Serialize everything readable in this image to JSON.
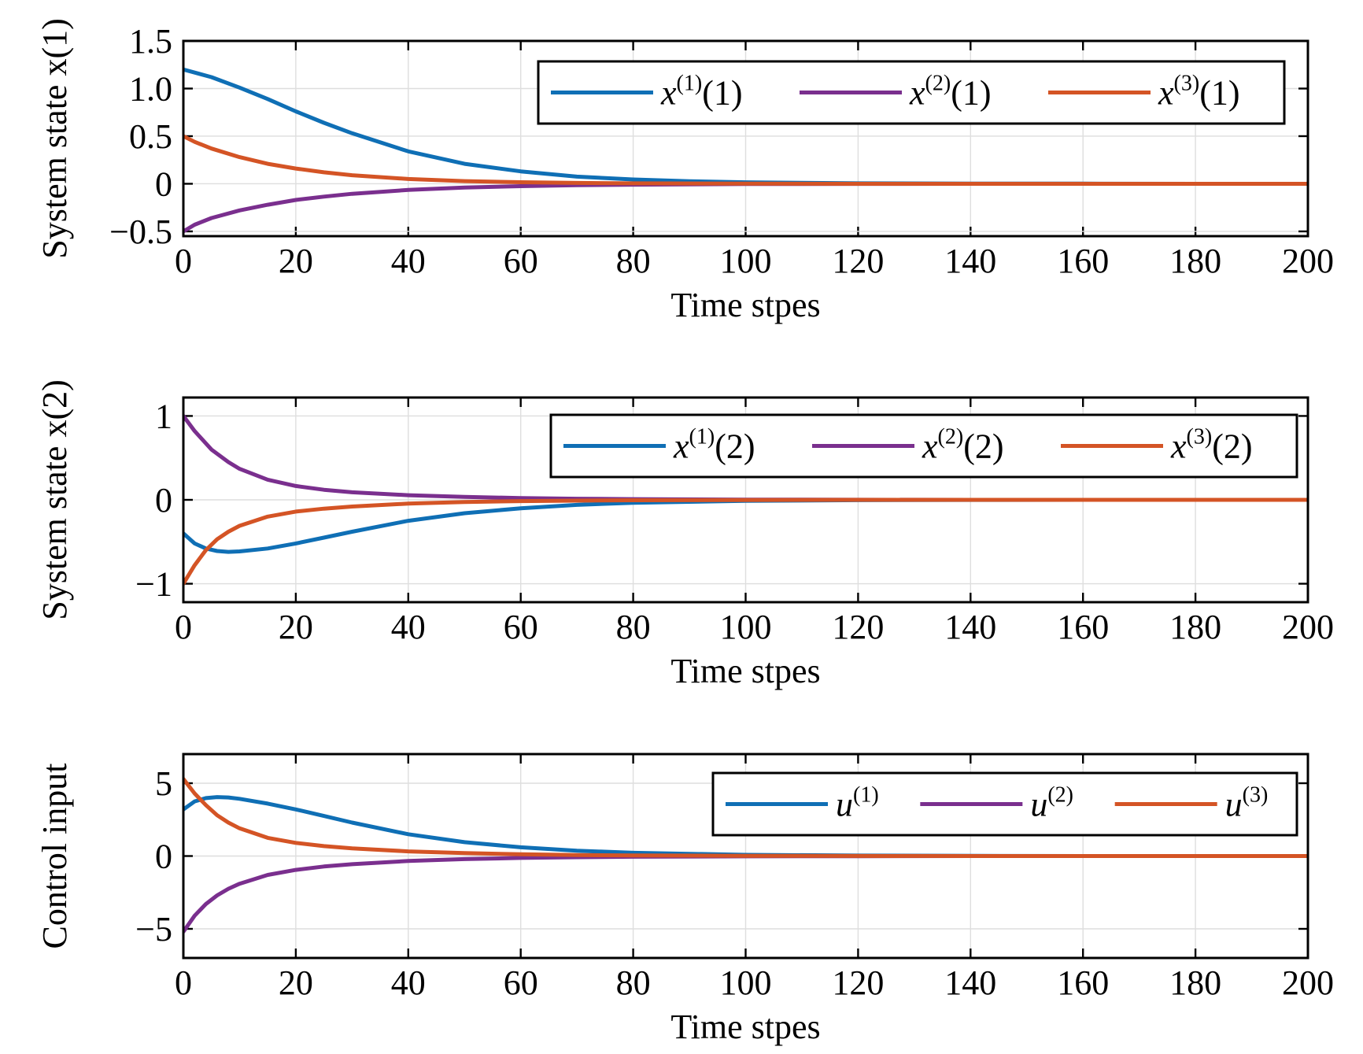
{
  "colors": {
    "blue": "#0f6fb5",
    "purple": "#7a2f8e",
    "orange": "#d45425"
  },
  "chart_data": [
    {
      "type": "line",
      "xlabel": "Time stpes",
      "ylabel": "System state x(1)",
      "xlim": [
        0,
        200
      ],
      "ylim": [
        -0.55,
        1.5
      ],
      "xticks": [
        "0",
        "20",
        "40",
        "60",
        "80",
        "100",
        "120",
        "140",
        "160",
        "180",
        "200"
      ],
      "yticks": [
        "1.5",
        "1.0",
        "0.5",
        "0",
        "−0.5"
      ],
      "yticks_values": [
        1.5,
        1.0,
        0.5,
        0,
        -0.5
      ],
      "grid": true,
      "legend_position": "top-right",
      "series": [
        {
          "name": "x(1)(1)",
          "label_main": "x",
          "label_sup": "(1)",
          "label_tail": "(1)",
          "color": "#0f6fb5",
          "x": [
            0,
            5,
            10,
            15,
            20,
            25,
            30,
            40,
            50,
            60,
            70,
            80,
            90,
            100,
            120,
            140,
            160,
            180,
            200
          ],
          "y": [
            1.2,
            1.12,
            1.01,
            0.89,
            0.76,
            0.64,
            0.53,
            0.34,
            0.21,
            0.13,
            0.075,
            0.045,
            0.026,
            0.015,
            0.005,
            0.002,
            0.001,
            0.0,
            0.0
          ]
        },
        {
          "name": "x(2)(1)",
          "label_main": "x",
          "label_sup": "(2)",
          "label_tail": "(1)",
          "color": "#7a2f8e",
          "x": [
            0,
            2,
            5,
            10,
            15,
            20,
            25,
            30,
            40,
            50,
            60,
            70,
            80,
            100,
            120,
            140,
            160,
            180,
            200
          ],
          "y": [
            -0.5,
            -0.43,
            -0.36,
            -0.28,
            -0.22,
            -0.17,
            -0.135,
            -0.105,
            -0.065,
            -0.04,
            -0.025,
            -0.015,
            -0.009,
            -0.003,
            -0.001,
            0.0,
            0.0,
            0.0,
            0.0
          ]
        },
        {
          "name": "x(3)(1)",
          "label_main": "x",
          "label_sup": "(3)",
          "label_tail": "(1)",
          "color": "#d45425",
          "x": [
            0,
            2,
            5,
            10,
            15,
            20,
            25,
            30,
            40,
            50,
            60,
            70,
            80,
            100,
            120,
            140,
            160,
            180,
            200
          ],
          "y": [
            0.5,
            0.44,
            0.37,
            0.28,
            0.21,
            0.16,
            0.12,
            0.09,
            0.05,
            0.028,
            0.016,
            0.009,
            0.005,
            0.002,
            0.0,
            0.0,
            0.0,
            0.0,
            0.0
          ]
        }
      ]
    },
    {
      "type": "line",
      "xlabel": "Time stpes",
      "ylabel": "System state x(2)",
      "xlim": [
        0,
        200
      ],
      "ylim": [
        -1.22,
        1.22
      ],
      "xticks": [
        "0",
        "20",
        "40",
        "60",
        "80",
        "100",
        "120",
        "140",
        "160",
        "180",
        "200"
      ],
      "yticks": [
        "1",
        "0",
        "−1"
      ],
      "yticks_values": [
        1,
        0,
        -1
      ],
      "grid": true,
      "legend_position": "top-right",
      "series": [
        {
          "name": "x(1)(2)",
          "label_main": "x",
          "label_sup": "(1)",
          "label_tail": "(2)",
          "color": "#0f6fb5",
          "x": [
            0,
            2,
            4,
            6,
            8,
            10,
            15,
            20,
            25,
            30,
            40,
            50,
            60,
            70,
            80,
            100,
            120,
            140,
            160,
            180,
            200
          ],
          "y": [
            -0.4,
            -0.52,
            -0.58,
            -0.61,
            -0.62,
            -0.615,
            -0.58,
            -0.52,
            -0.45,
            -0.38,
            -0.25,
            -0.16,
            -0.1,
            -0.06,
            -0.035,
            -0.012,
            -0.004,
            -0.001,
            0.0,
            0.0,
            0.0
          ]
        },
        {
          "name": "x(2)(2)",
          "label_main": "x",
          "label_sup": "(2)",
          "label_tail": "(2)",
          "color": "#7a2f8e",
          "x": [
            0,
            2,
            5,
            8,
            10,
            15,
            20,
            25,
            30,
            40,
            50,
            60,
            70,
            80,
            100,
            120,
            140,
            160,
            180,
            200
          ],
          "y": [
            1.0,
            0.82,
            0.6,
            0.45,
            0.37,
            0.24,
            0.165,
            0.12,
            0.09,
            0.055,
            0.035,
            0.022,
            0.013,
            0.008,
            0.003,
            0.001,
            0.0,
            0.0,
            0.0,
            0.0
          ]
        },
        {
          "name": "x(3)(2)",
          "label_main": "x",
          "label_sup": "(3)",
          "label_tail": "(2)",
          "color": "#d45425",
          "x": [
            0,
            2,
            4,
            6,
            8,
            10,
            15,
            20,
            25,
            30,
            40,
            50,
            60,
            70,
            80,
            100,
            120,
            140,
            160,
            180,
            200
          ],
          "y": [
            -1.0,
            -0.78,
            -0.6,
            -0.47,
            -0.38,
            -0.31,
            -0.2,
            -0.14,
            -0.105,
            -0.08,
            -0.045,
            -0.026,
            -0.015,
            -0.009,
            -0.005,
            -0.002,
            0.0,
            0.0,
            0.0,
            0.0,
            0.0
          ]
        }
      ]
    },
    {
      "type": "line",
      "xlabel": "Time stpes",
      "ylabel": "Control input",
      "xlim": [
        0,
        200
      ],
      "ylim": [
        -7,
        7
      ],
      "xticks": [
        "0",
        "20",
        "40",
        "60",
        "80",
        "100",
        "120",
        "140",
        "160",
        "180",
        "200"
      ],
      "yticks": [
        "5",
        "0",
        "−5"
      ],
      "yticks_values": [
        5,
        0,
        -5
      ],
      "grid": true,
      "legend_position": "top-right",
      "series": [
        {
          "name": "u(1)",
          "label_main": "u",
          "label_sup": "(1)",
          "label_tail": "",
          "color": "#0f6fb5",
          "x": [
            0,
            2,
            4,
            6,
            8,
            10,
            15,
            20,
            25,
            30,
            40,
            50,
            60,
            70,
            80,
            100,
            120,
            140,
            160,
            180,
            200
          ],
          "y": [
            3.2,
            3.75,
            3.98,
            4.05,
            4.02,
            3.93,
            3.6,
            3.2,
            2.75,
            2.3,
            1.5,
            0.95,
            0.6,
            0.37,
            0.22,
            0.08,
            0.03,
            0.01,
            0.0,
            0.0,
            0.0
          ]
        },
        {
          "name": "u(2)",
          "label_main": "u",
          "label_sup": "(2)",
          "label_tail": "",
          "color": "#7a2f8e",
          "x": [
            0,
            2,
            4,
            6,
            8,
            10,
            15,
            20,
            25,
            30,
            40,
            50,
            60,
            70,
            80,
            100,
            120,
            140,
            160,
            180,
            200
          ],
          "y": [
            -5.2,
            -4.1,
            -3.3,
            -2.7,
            -2.25,
            -1.9,
            -1.3,
            -0.95,
            -0.72,
            -0.56,
            -0.34,
            -0.21,
            -0.13,
            -0.08,
            -0.05,
            -0.02,
            -0.01,
            0.0,
            0.0,
            0.0,
            0.0
          ]
        },
        {
          "name": "u(3)",
          "label_main": "u",
          "label_sup": "(3)",
          "label_tail": "",
          "color": "#d45425",
          "x": [
            0,
            2,
            4,
            6,
            8,
            10,
            15,
            20,
            25,
            30,
            40,
            50,
            60,
            70,
            80,
            100,
            120,
            140,
            160,
            180,
            200
          ],
          "y": [
            5.3,
            4.3,
            3.5,
            2.8,
            2.3,
            1.9,
            1.25,
            0.9,
            0.68,
            0.53,
            0.32,
            0.2,
            0.12,
            0.07,
            0.04,
            0.015,
            0.005,
            0.0,
            0.0,
            0.0,
            0.0
          ]
        }
      ]
    }
  ]
}
